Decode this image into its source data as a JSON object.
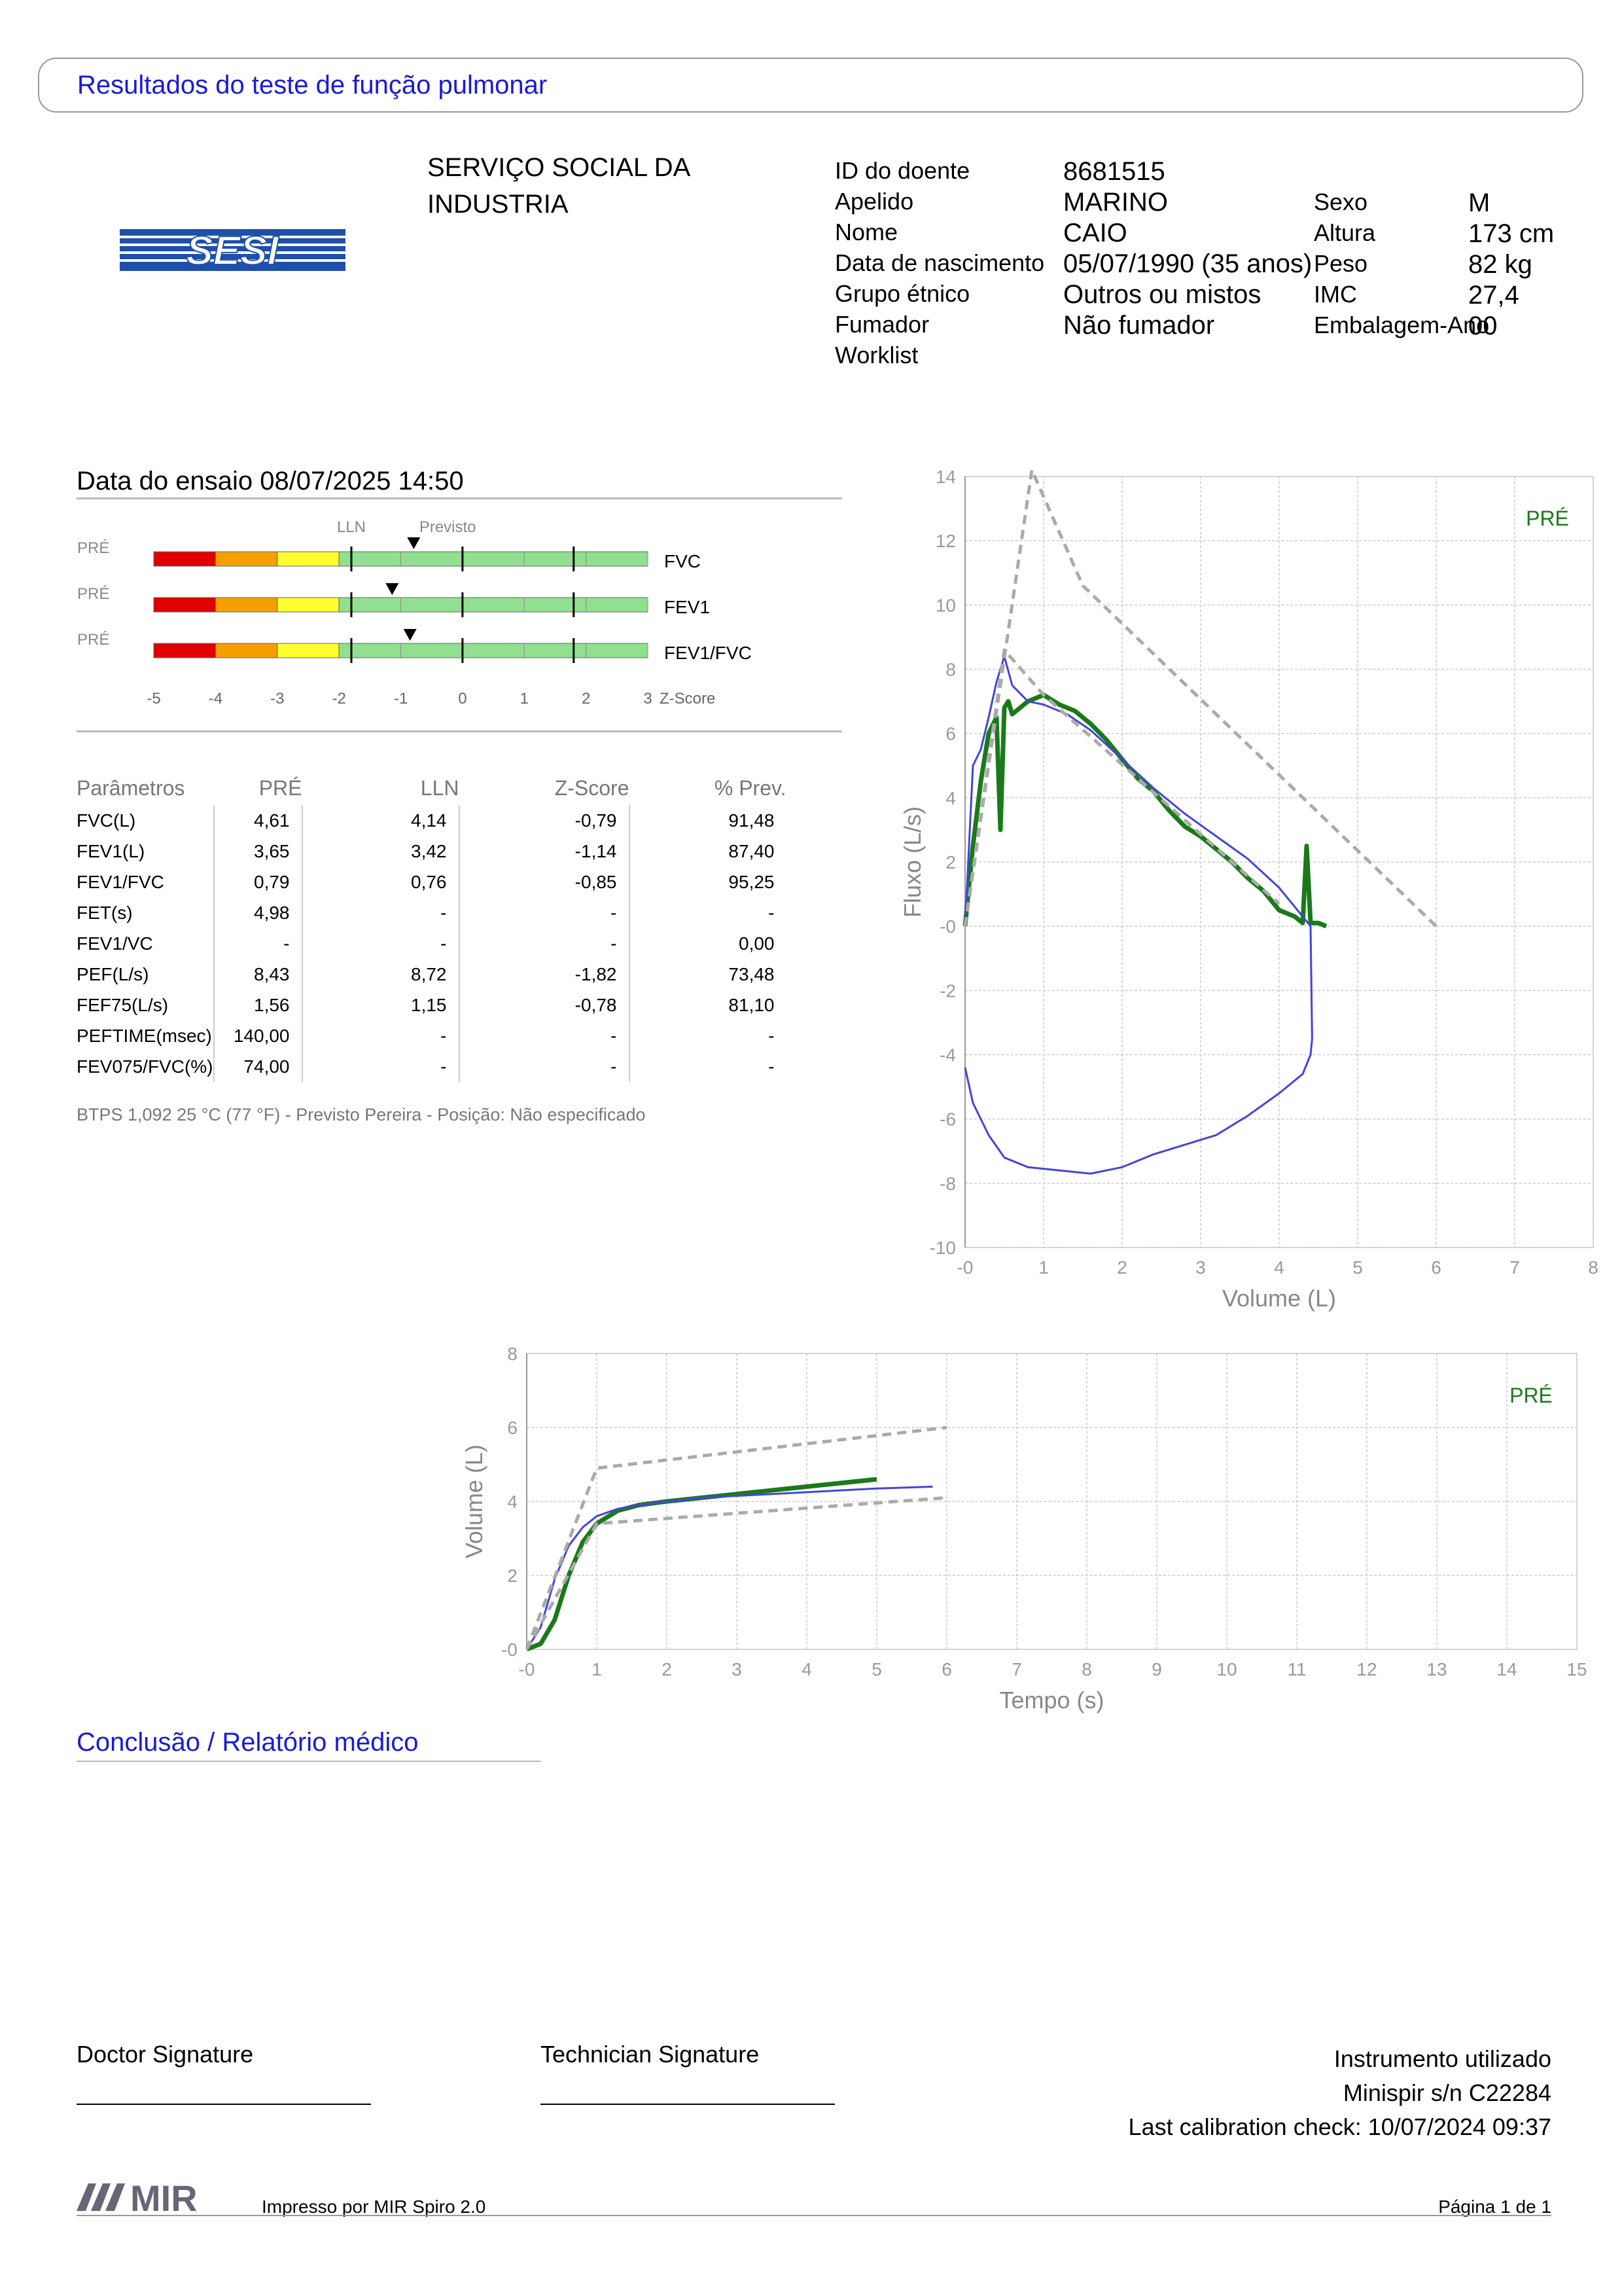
{
  "header": {
    "title": "Resultados do teste de função pulmonar"
  },
  "logo": {
    "text": "SESI"
  },
  "organization": "SERVIÇO SOCIAL DA INDUSTRIA",
  "patient": {
    "labels": [
      "ID do doente",
      "Apelido",
      "Nome",
      "Data de nascimento",
      "Grupo étnico",
      "Fumador",
      "Worklist"
    ],
    "values": [
      "8681515",
      "MARINO",
      "CAIO",
      "05/07/1990 (35 anos)",
      "Outros ou mistos",
      "Não fumador",
      ""
    ],
    "labels2": [
      "Sexo",
      "Altura",
      "Peso",
      "IMC",
      "Embalagem-Ano"
    ],
    "values2": [
      "M",
      "173 cm",
      "82 kg",
      "27,4",
      "00"
    ]
  },
  "test_date": "Data do ensaio 08/07/2025 14:50",
  "zscore": {
    "lln_label": "LLN",
    "pred_label": "Previsto",
    "rows": [
      {
        "tag": "PRÉ",
        "name": "FVC",
        "z": -0.79
      },
      {
        "tag": "PRÉ",
        "name": "FEV1",
        "z": -1.14
      },
      {
        "tag": "PRÉ",
        "name": "FEV1/FVC",
        "z": -0.85
      }
    ],
    "scale": [
      "-5",
      "-4",
      "-3",
      "-2",
      "-1",
      "0",
      "1",
      "2",
      "3"
    ],
    "scale_label": "Z-Score"
  },
  "params": {
    "headers": [
      "Parâmetros",
      "PRÉ",
      "LLN",
      "Z-Score",
      "% Prev."
    ],
    "rows": [
      [
        "FVC(L)",
        "4,61",
        "4,14",
        "-0,79",
        "91,48"
      ],
      [
        "FEV1(L)",
        "3,65",
        "3,42",
        "-1,14",
        "87,40"
      ],
      [
        "FEV1/FVC",
        "0,79",
        "0,76",
        "-0,85",
        "95,25"
      ],
      [
        "FET(s)",
        "4,98",
        "-",
        "-",
        "-"
      ],
      [
        "FEV1/VC",
        "-",
        "-",
        "-",
        "0,00"
      ],
      [
        "PEF(L/s)",
        "8,43",
        "8,72",
        "-1,82",
        "73,48"
      ],
      [
        "FEF75(L/s)",
        "1,56",
        "1,15",
        "-0,78",
        "81,10"
      ],
      [
        "PEFTIME(msec)",
        "140,00",
        "-",
        "-",
        "-"
      ],
      [
        "FEV075/FVC(%)",
        "74,00",
        "-",
        "-",
        "-"
      ]
    ]
  },
  "btps_note": "BTPS 1,092 25 °C (77 °F) - Previsto Pereira - Posição: Não especificado",
  "chart_data": [
    {
      "type": "line",
      "xlabel": "Volume (L)",
      "ylabel": "Fluxo (L/s)",
      "xlim": [
        0,
        8
      ],
      "ylim": [
        -10,
        14
      ],
      "xticks": [
        "-0",
        "1",
        "2",
        "3",
        "4",
        "5",
        "6",
        "7",
        "8"
      ],
      "yticks": [
        "14",
        "12",
        "10",
        "8",
        "6",
        "4",
        "2",
        "-0",
        "-2",
        "-4",
        "-6",
        "-8",
        "-10"
      ],
      "legend": "PRÉ",
      "series": [
        {
          "name": "PRÉ",
          "color": "#1a7a1a",
          "x": [
            0,
            0.1,
            0.2,
            0.3,
            0.4,
            0.45,
            0.5,
            0.55,
            0.6,
            0.7,
            0.8,
            1.0,
            1.2,
            1.4,
            1.6,
            1.8,
            2.0,
            2.2,
            2.4,
            2.6,
            2.8,
            3.0,
            3.2,
            3.4,
            3.6,
            3.8,
            4.0,
            4.2,
            4.3,
            4.35,
            4.4,
            4.5,
            4.6
          ],
          "y": [
            0,
            2.5,
            4.5,
            6,
            6.5,
            3,
            6.8,
            7,
            6.6,
            6.8,
            7,
            7.2,
            6.9,
            6.7,
            6.3,
            5.8,
            5.2,
            4.6,
            4.2,
            3.6,
            3.1,
            2.8,
            2.4,
            2.0,
            1.5,
            1.1,
            0.5,
            0.3,
            0.1,
            2.5,
            0.1,
            0.1,
            0
          ]
        },
        {
          "color": "#4444dd",
          "x": [
            0,
            0.1,
            0.2,
            0.3,
            0.4,
            0.5,
            0.6,
            0.8,
            1.0,
            1.3,
            1.6,
            2.0,
            2.4,
            2.8,
            3.2,
            3.6,
            4.0,
            4.3,
            4.4,
            4.42,
            4.4,
            4.3,
            4.0,
            3.6,
            3.2,
            2.8,
            2.4,
            2.0,
            1.6,
            1.2,
            0.8,
            0.5,
            0.3,
            0.1,
            0
          ],
          "y": [
            0,
            5,
            5.5,
            6.5,
            7.6,
            8.4,
            7.5,
            7.0,
            6.9,
            6.6,
            6.1,
            5.2,
            4.3,
            3.5,
            2.8,
            2.1,
            1.2,
            0.3,
            0,
            -3.5,
            -4,
            -4.6,
            -5.2,
            -5.9,
            -6.5,
            -6.8,
            -7.1,
            -7.5,
            -7.7,
            -7.6,
            -7.5,
            -7.2,
            -6.5,
            -5.5,
            -4.4
          ]
        },
        {
          "color": "#aaaaaa",
          "x": [
            0,
            0.85,
            1.5,
            6
          ],
          "y": [
            0,
            14.2,
            10.6,
            0
          ]
        },
        {
          "color": "#aaaaaa",
          "x": [
            0,
            0.5,
            1.0,
            1.6,
            2.2,
            2.8,
            3.4,
            4.0
          ],
          "y": [
            0,
            8.6,
            7.2,
            5.9,
            4.6,
            3.3,
            2.0,
            0.7
          ]
        }
      ]
    },
    {
      "type": "line",
      "xlabel": "Tempo (s)",
      "ylabel": "Volume (L)",
      "xlim": [
        0,
        15
      ],
      "ylim": [
        0,
        8
      ],
      "xticks": [
        "-0",
        "1",
        "2",
        "3",
        "4",
        "5",
        "6",
        "7",
        "8",
        "9",
        "10",
        "11",
        "12",
        "13",
        "14",
        "15"
      ],
      "yticks": [
        "8",
        "6",
        "4",
        "2",
        "-0"
      ],
      "legend": "PRÉ",
      "series": [
        {
          "name": "PRÉ",
          "color": "#1a7a1a",
          "x": [
            0,
            0.2,
            0.4,
            0.6,
            0.8,
            1.0,
            1.3,
            1.6,
            2.0,
            2.5,
            3.0,
            3.5,
            4.0,
            4.5,
            5.0
          ],
          "y": [
            0,
            0.15,
            0.8,
            2.0,
            2.9,
            3.4,
            3.75,
            3.9,
            4.0,
            4.1,
            4.2,
            4.3,
            4.4,
            4.5,
            4.6
          ]
        },
        {
          "color": "#4444dd",
          "x": [
            0,
            0.2,
            0.4,
            0.6,
            0.8,
            1.0,
            1.3,
            1.6,
            2.0,
            2.5,
            3.0,
            3.5,
            4.0,
            4.5,
            5.0,
            5.5,
            5.8
          ],
          "y": [
            0,
            0.6,
            1.9,
            2.8,
            3.3,
            3.6,
            3.8,
            3.9,
            4.0,
            4.1,
            4.15,
            4.2,
            4.25,
            4.3,
            4.35,
            4.38,
            4.4
          ]
        },
        {
          "color": "#aaaaaa",
          "x": [
            0,
            1.0,
            6
          ],
          "y": [
            0,
            4.9,
            6.0
          ]
        },
        {
          "color": "#aaaaaa",
          "x": [
            0,
            1.0,
            6
          ],
          "y": [
            0,
            3.4,
            4.1
          ]
        }
      ]
    }
  ],
  "conclusion_title": "Conclusão / Relatório médico",
  "signatures": {
    "doctor": "Doctor Signature",
    "technician": "Technician Signature"
  },
  "instrument": {
    "title": "Instrumento utilizado",
    "model": "Minispir s/n C22284",
    "calibration": "Last calibration check: 10/07/2024 09:37"
  },
  "footer": {
    "logo": "MIR",
    "printed": "Impresso por MIR Spiro 2.0",
    "page": "Página 1 de 1"
  }
}
